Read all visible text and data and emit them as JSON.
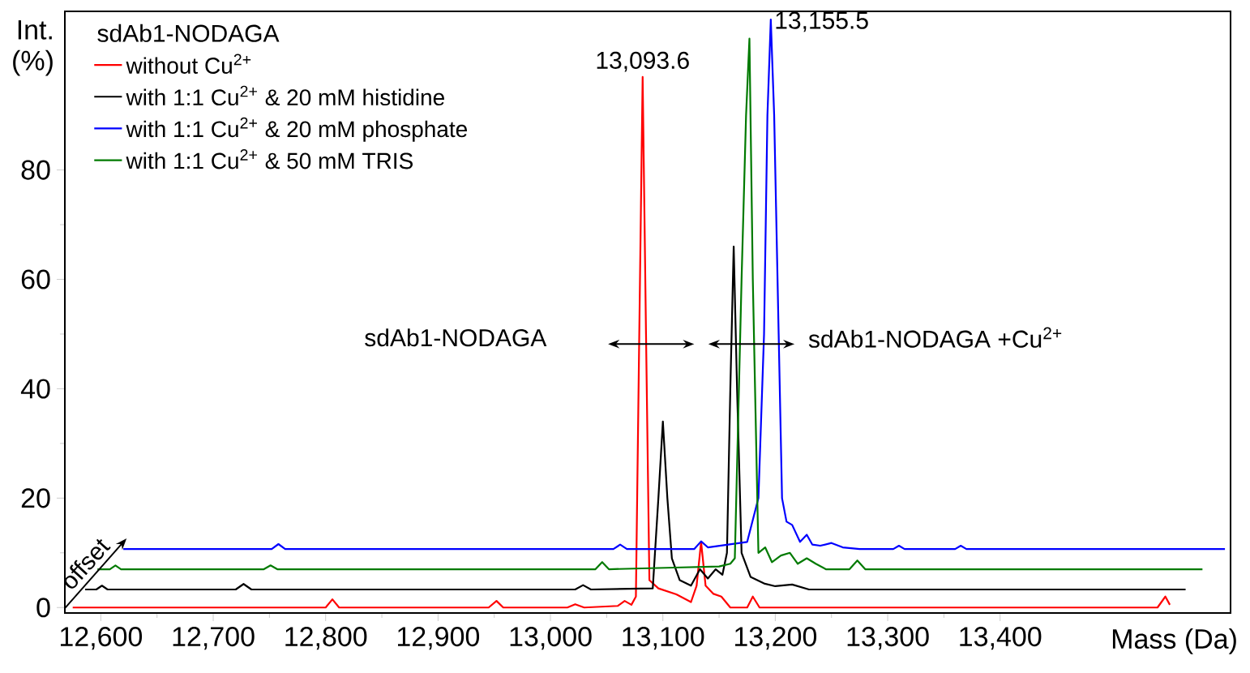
{
  "chart_data": {
    "type": "line",
    "legend_title": "sdAb1-NODAGA",
    "xlabel": "Mass (Da)",
    "ylabel": "Int. (%)",
    "series": [
      {
        "name": "without Cu$^{2+}$",
        "color": "#ff0000",
        "x": [
          12575,
          12800,
          12806,
          12812,
          12945,
          12952,
          12958,
          13015,
          13022,
          13030,
          13060,
          13066,
          13072,
          13076,
          13079,
          13082,
          13085,
          13088,
          13096,
          13112,
          13125,
          13130,
          13134,
          13138,
          13145,
          13152,
          13160,
          13175,
          13180,
          13186,
          13540,
          13547,
          13551
        ],
        "values": [
          0,
          0,
          1.5,
          0,
          0,
          1.2,
          0,
          0,
          0.6,
          0,
          0.3,
          1.2,
          0.5,
          2,
          50,
          97,
          50,
          5,
          3.5,
          2.4,
          1,
          4,
          12,
          4,
          2.5,
          2,
          0,
          0,
          2,
          0,
          0,
          2,
          0.5
        ]
      },
      {
        "name": "with 1:1 Cu$^{2+}$ & 20 mM histidine",
        "color": "#000000",
        "x": [
          12586,
          12596,
          12601,
          12606,
          12720,
          12727,
          12734,
          13022,
          13029,
          13036,
          13091,
          13096,
          13100,
          13104,
          13108,
          13115,
          13125,
          13133,
          13140,
          13147,
          13153,
          13157,
          13160,
          13163,
          13166,
          13170,
          13178,
          13190,
          13200,
          13215,
          13230,
          13565
        ],
        "values": [
          3.3,
          3.3,
          4.0,
          3.3,
          3.3,
          4.3,
          3.3,
          3.3,
          4.1,
          3.3,
          3.5,
          20,
          34,
          20,
          9,
          5,
          4,
          7,
          5.3,
          7,
          6,
          10,
          40,
          66,
          40,
          10,
          5.6,
          4.4,
          3.9,
          4.2,
          3.3,
          3.3
        ]
      },
      {
        "name": "with 1:1 Cu$^{2+}$ & 20 mM phosphate",
        "color": "#0000ff",
        "x": [
          12620,
          12752,
          12758,
          12764,
          13056,
          13062,
          13068,
          13128,
          13134,
          13140,
          13175,
          13185,
          13190,
          13193,
          13196,
          13199,
          13203,
          13206,
          13210,
          13215,
          13222,
          13228,
          13233,
          13240,
          13250,
          13260,
          13275,
          13305,
          13310,
          13315,
          13360,
          13365,
          13370,
          13600
        ],
        "values": [
          10.7,
          10.7,
          11.6,
          10.7,
          10.7,
          11.5,
          10.7,
          10.7,
          12.1,
          11,
          12,
          20,
          50,
          90,
          107.5,
          90,
          50,
          20,
          15.7,
          15.1,
          12,
          13.3,
          11.5,
          11.3,
          11.8,
          11,
          10.7,
          10.7,
          11.3,
          10.7,
          10.7,
          11.3,
          10.7,
          10.7
        ]
      },
      {
        "name": "with 1:1 Cu$^{2+}$ & 50 mM TRIS",
        "color": "#007a00",
        "x": [
          12597,
          12608,
          12613,
          12618,
          12745,
          12751,
          12757,
          13040,
          13046,
          13052,
          13110,
          13150,
          13160,
          13164,
          13170,
          13174,
          13177,
          13180,
          13185,
          13191,
          13197,
          13205,
          13213,
          13220,
          13228,
          13236,
          13245,
          13260,
          13266,
          13273,
          13280,
          13580
        ],
        "values": [
          7,
          7,
          7.7,
          7,
          7,
          7.7,
          7,
          7,
          8.3,
          7,
          7.3,
          7.5,
          8,
          9,
          60,
          90,
          104,
          60,
          10,
          11,
          8.3,
          9.5,
          10,
          8,
          9,
          8,
          7,
          7,
          7,
          8.6,
          7,
          7
        ]
      }
    ],
    "xlim": [
      12568,
      13605
    ],
    "ylim": [
      -1,
      109
    ],
    "xticks": [
      {
        "value": 12600,
        "label": "12,600"
      },
      {
        "value": 12700,
        "label": "12,700"
      },
      {
        "value": 12800,
        "label": "12,800"
      },
      {
        "value": 12900,
        "label": "12,900"
      },
      {
        "value": 13000,
        "label": "13,000"
      },
      {
        "value": 13100,
        "label": "13,100"
      },
      {
        "value": 13200,
        "label": "13,200"
      },
      {
        "value": 13300,
        "label": "13,300"
      },
      {
        "value": 13400,
        "label": "13,400"
      }
    ],
    "yticks": [
      0,
      20,
      40,
      60,
      80
    ],
    "legend": "top left",
    "line_style": "solid",
    "annotations": [
      "offset",
      "sdAb1-NODAGA",
      "sdAb1-NODAGA +Cu$^{2+}$",
      {
        "text": "13,093.6",
        "x": 13082,
        "y": 97
      },
      {
        "text": "13,155.5",
        "x": 13196,
        "y": 107.5
      }
    ]
  }
}
